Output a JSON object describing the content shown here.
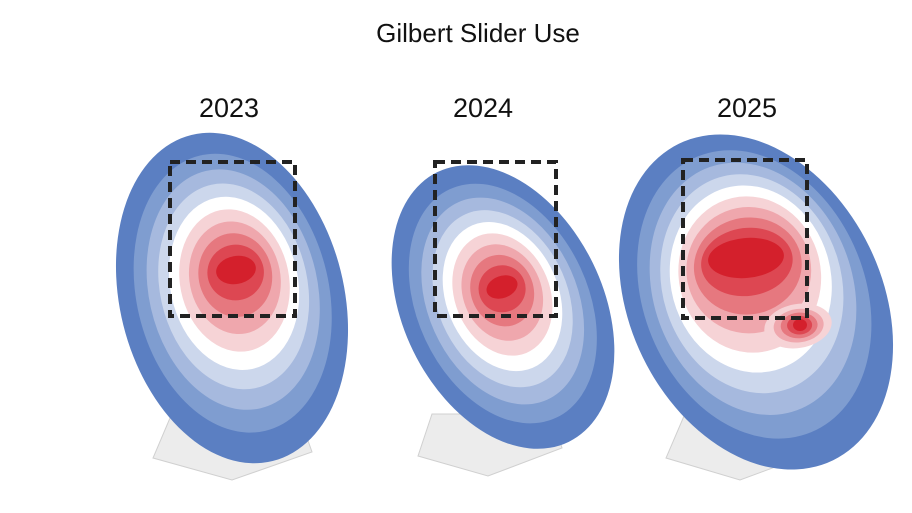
{
  "title": "Gilbert Slider Use",
  "panels": [
    {
      "label": "2023"
    },
    {
      "label": "2024"
    },
    {
      "label": "2025"
    }
  ]
}
